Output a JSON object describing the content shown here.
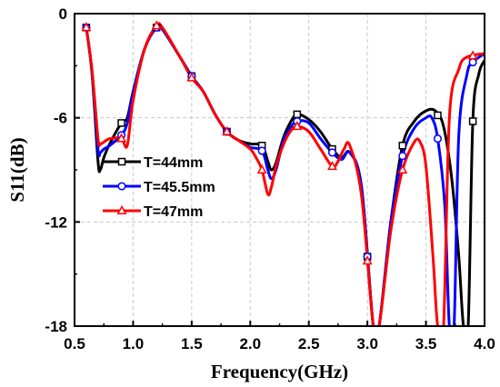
{
  "chart_data": {
    "type": "line",
    "xlabel": "Frequency(GHz)",
    "ylabel": "S11(dB)",
    "xlim": [
      0.5,
      4.0
    ],
    "ylim": [
      -18,
      0
    ],
    "x_ticks": [
      0.5,
      1.0,
      1.5,
      2.0,
      2.5,
      3.0,
      3.5,
      4.0
    ],
    "y_ticks": [
      -18,
      -12,
      -6,
      0
    ],
    "x_tick_labels": [
      "0.5",
      "1.0",
      "1.5",
      "2.0",
      "2.5",
      "3.0",
      "3.5",
      "4.0"
    ],
    "y_tick_labels": [
      "-18",
      "-12",
      "-6",
      "0"
    ],
    "grid": true,
    "legend_position": "left-middle",
    "series": [
      {
        "name": "T=44mm",
        "color": "#000000",
        "marker": "square",
        "points": [
          [
            0.6,
            -0.8
          ],
          [
            0.65,
            -3.5
          ],
          [
            0.7,
            -8.5
          ],
          [
            0.72,
            -9.0
          ],
          [
            0.75,
            -8.3
          ],
          [
            0.8,
            -7.5
          ],
          [
            0.9,
            -6.3
          ],
          [
            0.95,
            -6.0
          ],
          [
            1.0,
            -4.5
          ],
          [
            1.1,
            -2.0
          ],
          [
            1.2,
            -0.8
          ],
          [
            1.25,
            -0.9
          ],
          [
            1.4,
            -2.5
          ],
          [
            1.5,
            -3.6
          ],
          [
            1.6,
            -4.5
          ],
          [
            1.7,
            -5.8
          ],
          [
            1.8,
            -6.8
          ],
          [
            1.9,
            -7.3
          ],
          [
            2.0,
            -7.5
          ],
          [
            2.1,
            -7.6
          ],
          [
            2.15,
            -8.5
          ],
          [
            2.18,
            -9.0
          ],
          [
            2.22,
            -8.6
          ],
          [
            2.28,
            -7.2
          ],
          [
            2.34,
            -6.3
          ],
          [
            2.4,
            -5.8
          ],
          [
            2.5,
            -6.1
          ],
          [
            2.6,
            -6.8
          ],
          [
            2.7,
            -7.8
          ],
          [
            2.78,
            -8.3
          ],
          [
            2.85,
            -8.0
          ],
          [
            2.95,
            -10.0
          ],
          [
            3.05,
            -18.0
          ],
          [
            3.1,
            -18.0
          ],
          [
            3.2,
            -12.0
          ],
          [
            3.3,
            -7.6
          ],
          [
            3.4,
            -6.2
          ],
          [
            3.5,
            -5.6
          ],
          [
            3.58,
            -5.6
          ],
          [
            3.65,
            -6.5
          ],
          [
            3.72,
            -9.5
          ],
          [
            3.78,
            -14.0
          ],
          [
            3.82,
            -18.0
          ],
          [
            3.86,
            -18.0
          ],
          [
            3.9,
            -6.2
          ],
          [
            3.95,
            -3.5
          ],
          [
            4.0,
            -2.7
          ]
        ]
      },
      {
        "name": "T=45.5mm",
        "color": "#0000ff",
        "marker": "circle",
        "points": [
          [
            0.6,
            -0.8
          ],
          [
            0.65,
            -3.4
          ],
          [
            0.7,
            -7.8
          ],
          [
            0.72,
            -8.0
          ],
          [
            0.75,
            -7.8
          ],
          [
            0.8,
            -7.6
          ],
          [
            0.9,
            -7.0
          ],
          [
            0.95,
            -6.3
          ],
          [
            1.0,
            -4.5
          ],
          [
            1.1,
            -2.0
          ],
          [
            1.2,
            -0.8
          ],
          [
            1.25,
            -0.9
          ],
          [
            1.4,
            -2.5
          ],
          [
            1.5,
            -3.6
          ],
          [
            1.6,
            -4.5
          ],
          [
            1.7,
            -5.8
          ],
          [
            1.8,
            -6.8
          ],
          [
            1.9,
            -7.3
          ],
          [
            2.0,
            -7.7
          ],
          [
            2.1,
            -7.9
          ],
          [
            2.15,
            -9.0
          ],
          [
            2.18,
            -9.5
          ],
          [
            2.22,
            -9.0
          ],
          [
            2.28,
            -7.4
          ],
          [
            2.34,
            -6.6
          ],
          [
            2.4,
            -6.2
          ],
          [
            2.5,
            -6.3
          ],
          [
            2.6,
            -7.2
          ],
          [
            2.7,
            -8.0
          ],
          [
            2.78,
            -8.4
          ],
          [
            2.85,
            -8.0
          ],
          [
            2.95,
            -10.0
          ],
          [
            3.05,
            -18.0
          ],
          [
            3.1,
            -18.0
          ],
          [
            3.2,
            -12.0
          ],
          [
            3.3,
            -8.2
          ],
          [
            3.4,
            -6.6
          ],
          [
            3.5,
            -6.0
          ],
          [
            3.55,
            -6.0
          ],
          [
            3.6,
            -7.2
          ],
          [
            3.66,
            -11.0
          ],
          [
            3.7,
            -18.0
          ],
          [
            3.74,
            -18.0
          ],
          [
            3.78,
            -7.0
          ],
          [
            3.85,
            -3.5
          ],
          [
            3.9,
            -2.8
          ],
          [
            4.0,
            -2.3
          ]
        ]
      },
      {
        "name": "T=47mm",
        "color": "#ff0000",
        "marker": "triangle",
        "points": [
          [
            0.6,
            -0.8
          ],
          [
            0.65,
            -3.3
          ],
          [
            0.7,
            -7.2
          ],
          [
            0.72,
            -7.5
          ],
          [
            0.75,
            -7.4
          ],
          [
            0.8,
            -7.2
          ],
          [
            0.9,
            -7.2
          ],
          [
            0.95,
            -7.6
          ],
          [
            1.0,
            -5.0
          ],
          [
            1.1,
            -2.0
          ],
          [
            1.2,
            -0.7
          ],
          [
            1.25,
            -0.8
          ],
          [
            1.4,
            -2.5
          ],
          [
            1.5,
            -3.7
          ],
          [
            1.6,
            -4.5
          ],
          [
            1.7,
            -5.8
          ],
          [
            1.8,
            -6.8
          ],
          [
            1.9,
            -7.3
          ],
          [
            2.0,
            -7.8
          ],
          [
            2.05,
            -8.3
          ],
          [
            2.1,
            -9.0
          ],
          [
            2.15,
            -10.4
          ],
          [
            2.18,
            -10.0
          ],
          [
            2.22,
            -8.8
          ],
          [
            2.28,
            -7.6
          ],
          [
            2.34,
            -6.8
          ],
          [
            2.4,
            -6.5
          ],
          [
            2.5,
            -6.8
          ],
          [
            2.6,
            -7.8
          ],
          [
            2.7,
            -8.8
          ],
          [
            2.75,
            -8.5
          ],
          [
            2.8,
            -7.8
          ],
          [
            2.85,
            -7.6
          ],
          [
            2.95,
            -10.5
          ],
          [
            3.05,
            -18.0
          ],
          [
            3.1,
            -18.0
          ],
          [
            3.2,
            -12.5
          ],
          [
            3.3,
            -9.0
          ],
          [
            3.4,
            -7.4
          ],
          [
            3.45,
            -7.4
          ],
          [
            3.5,
            -8.8
          ],
          [
            3.56,
            -14.0
          ],
          [
            3.6,
            -18.0
          ],
          [
            3.65,
            -18.0
          ],
          [
            3.7,
            -6.0
          ],
          [
            3.78,
            -3.2
          ],
          [
            3.85,
            -2.5
          ],
          [
            4.0,
            -2.3
          ]
        ]
      }
    ]
  }
}
